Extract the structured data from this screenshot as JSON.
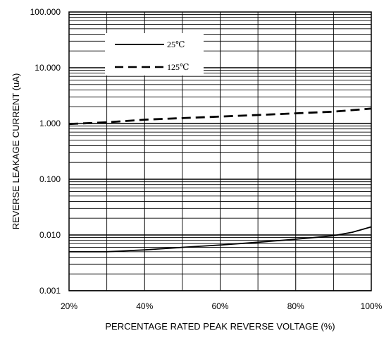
{
  "chart_data": {
    "type": "line",
    "title": "",
    "xlabel": "PERCENTAGE RATED PEAK REVERSE VOLTAGE (%)",
    "ylabel": "REVERSE LEAKAGE CURRENT (uA)",
    "xscale": "linear",
    "yscale": "log",
    "xlim": [
      20,
      100
    ],
    "ylim": [
      0.001,
      100
    ],
    "xticks": [
      20,
      40,
      60,
      80,
      100
    ],
    "xtick_labels": [
      "20%",
      "40%",
      "60%",
      "80%",
      "100%"
    ],
    "yticks": [
      0.001,
      0.01,
      0.1,
      1,
      10,
      100
    ],
    "ytick_labels": [
      "0.001",
      "0.010",
      "0.100",
      "1.000",
      "10.000",
      "100.000"
    ],
    "grid": true,
    "legend_position": "top-left",
    "series": [
      {
        "name": "25℃",
        "style": "solid",
        "x": [
          20,
          30,
          40,
          50,
          60,
          70,
          80,
          90,
          95,
          100
        ],
        "y": [
          0.005,
          0.005,
          0.0054,
          0.006,
          0.0066,
          0.0074,
          0.0084,
          0.0097,
          0.0112,
          0.014
        ]
      },
      {
        "name": "125℃",
        "style": "dashed",
        "x": [
          20,
          30,
          40,
          50,
          60,
          70,
          80,
          90,
          100
        ],
        "y": [
          0.98,
          1.05,
          1.17,
          1.25,
          1.33,
          1.42,
          1.52,
          1.63,
          1.85
        ]
      }
    ]
  }
}
